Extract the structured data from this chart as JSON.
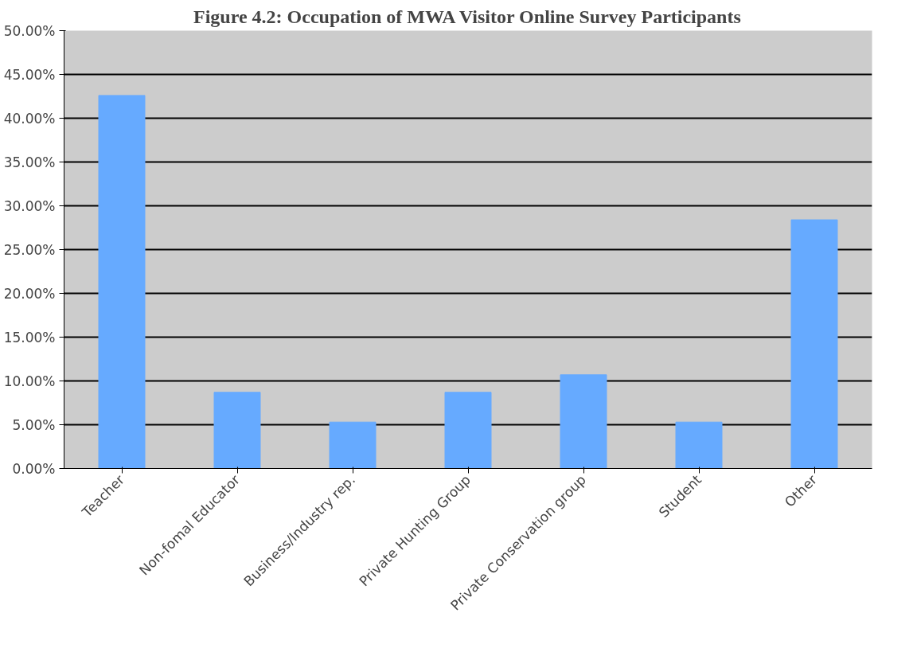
{
  "chart_data": {
    "type": "bar",
    "title": "Figure 4.2: Occupation of MWA Visitor Online Survey Participants",
    "categories": [
      "Teacher",
      "Non-fomal Educator",
      "Business/Industry rep.",
      "Private Hunting Group",
      "Private Conservation group",
      "Student",
      "Other"
    ],
    "values": [
      42.6,
      8.7,
      5.3,
      8.7,
      10.7,
      5.3,
      28.4
    ],
    "color": "#66aaff",
    "ylim": [
      0,
      50
    ],
    "yticks": [
      {
        "value": 0,
        "label": "0.00%"
      },
      {
        "value": 5,
        "label": "5.00%"
      },
      {
        "value": 10,
        "label": "10.00%"
      },
      {
        "value": 15,
        "label": "15.00%"
      },
      {
        "value": 20,
        "label": "20.00%"
      },
      {
        "value": 25,
        "label": "25.00%"
      },
      {
        "value": 30,
        "label": "30.00%"
      },
      {
        "value": 35,
        "label": "35.00%"
      },
      {
        "value": 40,
        "label": "40.00%"
      },
      {
        "value": 45,
        "label": "45.00%"
      },
      {
        "value": 50,
        "label": "50.00%"
      }
    ],
    "grid": "y"
  }
}
